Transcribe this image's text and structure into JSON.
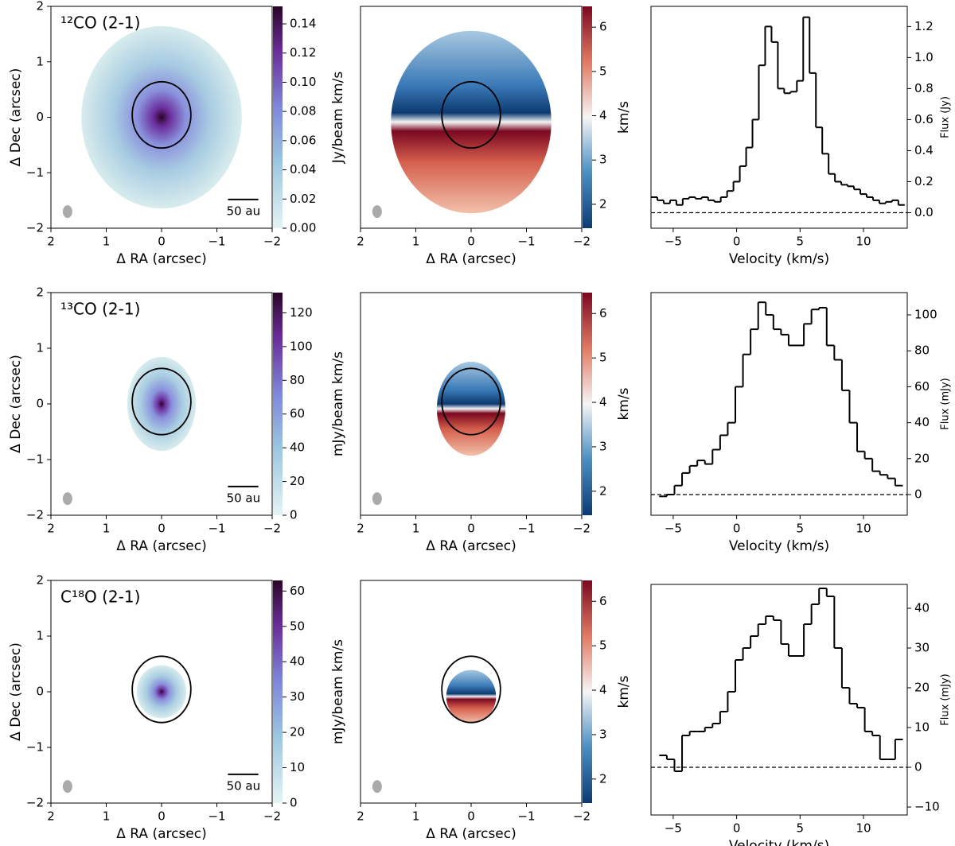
{
  "chart_data": [
    {
      "type": "image",
      "label": "¹²CO (2-1)",
      "scalebar_label": "50 au",
      "xlabel": "Δ RA (arcsec)",
      "ylabel": "Δ Dec (arcsec)",
      "xlim": [
        2,
        -2
      ],
      "ylim": [
        -2,
        2
      ],
      "xticks": [
        2,
        1,
        0,
        {
          "value": -1,
          "label": "−1"
        },
        {
          "value": -2,
          "label": "−2"
        }
      ],
      "yticks": [
        {
          "value": -2,
          "label": "−2"
        },
        {
          "value": -1,
          "label": "−1"
        },
        0,
        1,
        2
      ],
      "cmap": "moment0",
      "clim": [
        0,
        0.152
      ],
      "clabel": "Jy/beam km/s",
      "cticks": [
        {
          "value": 0,
          "label": "0.00"
        },
        {
          "value": 0.02,
          "label": "0.02"
        },
        {
          "value": 0.04,
          "label": "0.04"
        },
        {
          "value": 0.06,
          "label": "0.06"
        },
        {
          "value": 0.08,
          "label": "0.08"
        },
        {
          "value": 0.1,
          "label": "0.10"
        },
        {
          "value": 0.12,
          "label": "0.12"
        },
        {
          "value": 0.14,
          "label": "0.14"
        }
      ]
    },
    {
      "type": "image",
      "xlabel": "Δ RA (arcsec)",
      "xlim": [
        2,
        -2
      ],
      "ylim": [
        -2,
        2
      ],
      "xticks": [
        2,
        1,
        0,
        {
          "value": -1,
          "label": "−1"
        },
        {
          "value": -2,
          "label": "−2"
        }
      ],
      "cmap": "moment1",
      "clim": [
        1.46,
        6.47
      ],
      "clabel": "km/s",
      "cticks": [
        2,
        3,
        4,
        5,
        6
      ]
    },
    {
      "type": "line",
      "xlabel": "Velocity (km/s)",
      "ylabel": "Flux (Jy)",
      "color": "#000000",
      "hline": 0,
      "xlim": [
        -6.75,
        13.45
      ],
      "ylim": [
        -0.1,
        1.33
      ],
      "xticks": [
        {
          "value": -5,
          "label": "−5"
        },
        0,
        5,
        10
      ],
      "yticks": [
        {
          "value": 0,
          "label": "0.0"
        },
        {
          "value": 0.2,
          "label": "0.2"
        },
        {
          "value": 0.4,
          "label": "0.4"
        },
        {
          "value": 0.6,
          "label": "0.6"
        },
        {
          "value": 0.8,
          "label": "0.8"
        },
        {
          "value": 1,
          "label": "1.0"
        },
        {
          "value": 1.2,
          "label": "1.2"
        }
      ],
      "x": [
        -6.5,
        -6,
        -5.5,
        -5,
        -4.5,
        -4,
        -3.5,
        -3,
        -2.5,
        -2,
        -1.5,
        -1,
        -0.5,
        0,
        0.5,
        1,
        1.5,
        2,
        2.5,
        3,
        3.5,
        4,
        4.5,
        5,
        5.5,
        6,
        6.5,
        7,
        7.5,
        8,
        8.5,
        9,
        9.5,
        10,
        10.5,
        11,
        11.5,
        12,
        12.5,
        13
      ],
      "values": [
        0.1,
        0.08,
        0.06,
        0.08,
        0.05,
        0.09,
        0.1,
        0.09,
        0.1,
        0.08,
        0.07,
        0.1,
        0.14,
        0.2,
        0.3,
        0.42,
        0.6,
        0.95,
        1.2,
        1.1,
        0.8,
        0.77,
        0.78,
        0.85,
        1.26,
        0.9,
        0.55,
        0.38,
        0.25,
        0.2,
        0.18,
        0.17,
        0.15,
        0.12,
        0.1,
        0.08,
        0.06,
        0.07,
        0.08,
        0.05
      ]
    },
    {
      "type": "image",
      "label": "¹³CO (2-1)",
      "scalebar_label": "50 au",
      "xlabel": "Δ RA (arcsec)",
      "ylabel": "Δ Dec (arcsec)",
      "xlim": [
        2,
        -2
      ],
      "ylim": [
        -2,
        2
      ],
      "xticks": [
        2,
        1,
        0,
        {
          "value": -1,
          "label": "−1"
        },
        {
          "value": -2,
          "label": "−2"
        }
      ],
      "yticks": [
        {
          "value": -2,
          "label": "−2"
        },
        {
          "value": -1,
          "label": "−1"
        },
        0,
        1,
        2
      ],
      "cmap": "moment0",
      "clim": [
        0,
        132
      ],
      "clabel": "mJy/beam km/s",
      "cticks": [
        0,
        20,
        40,
        60,
        80,
        100,
        120
      ]
    },
    {
      "type": "image",
      "xlabel": "Δ RA (arcsec)",
      "xlim": [
        2,
        -2
      ],
      "ylim": [
        -2,
        2
      ],
      "xticks": [
        2,
        1,
        0,
        {
          "value": -1,
          "label": "−1"
        },
        {
          "value": -2,
          "label": "−2"
        }
      ],
      "cmap": "moment1",
      "clim": [
        1.46,
        6.47
      ],
      "clabel": "km/s",
      "cticks": [
        2,
        3,
        4,
        5,
        6
      ]
    },
    {
      "type": "line",
      "xlabel": "Velocity (km/s)",
      "ylabel": "Flux (mJy)",
      "color": "#000000",
      "hline": 0,
      "xlim": [
        -6.75,
        13.45
      ],
      "ylim": [
        -11.5,
        112.4
      ],
      "xticks": [
        {
          "value": -5,
          "label": "−5"
        },
        0,
        5,
        10
      ],
      "yticks": [
        0,
        20,
        40,
        60,
        80,
        100
      ],
      "x": [
        -5.8,
        -5.2,
        -4.6,
        -4,
        -3.4,
        -2.8,
        -2.2,
        -1.6,
        -1,
        -0.4,
        0.2,
        0.8,
        1.4,
        2,
        2.6,
        3.2,
        3.8,
        4.4,
        5,
        5.6,
        6.2,
        6.8,
        7.4,
        8,
        8.6,
        9.2,
        9.8,
        10.4,
        11,
        11.6,
        12.2,
        12.8
      ],
      "values": [
        -1,
        0,
        5,
        12,
        16,
        19,
        17,
        25,
        33,
        40,
        60,
        78,
        92,
        107,
        100,
        92,
        89,
        83,
        83,
        95,
        103,
        104,
        83,
        75,
        58,
        40,
        24,
        20,
        13,
        11,
        9,
        5
      ]
    },
    {
      "type": "image",
      "label": "C¹⁸O (2-1)",
      "scalebar_label": "50 au",
      "xlabel": "Δ RA (arcsec)",
      "ylabel": "Δ Dec (arcsec)",
      "xlim": [
        2,
        -2
      ],
      "ylim": [
        -2,
        2
      ],
      "xticks": [
        2,
        1,
        0,
        {
          "value": -1,
          "label": "−1"
        },
        {
          "value": -2,
          "label": "−2"
        }
      ],
      "yticks": [
        {
          "value": -2,
          "label": "−2"
        },
        {
          "value": -1,
          "label": "−1"
        },
        0,
        1,
        2
      ],
      "cmap": "moment0",
      "clim": [
        0,
        63
      ],
      "clabel": "mJy/beam km/s",
      "cticks": [
        0,
        10,
        20,
        30,
        40,
        50,
        60
      ]
    },
    {
      "type": "image",
      "xlabel": "Δ RA (arcsec)",
      "xlim": [
        2,
        -2
      ],
      "ylim": [
        -2,
        2
      ],
      "xticks": [
        2,
        1,
        0,
        {
          "value": -1,
          "label": "−1"
        },
        {
          "value": -2,
          "label": "−2"
        }
      ],
      "cmap": "moment1",
      "clim": [
        1.46,
        6.47
      ],
      "clabel": "km/s",
      "cticks": [
        2,
        3,
        4,
        5,
        6
      ]
    },
    {
      "type": "line",
      "xlabel": "Velocity (km/s)",
      "ylabel": "Flux (mJy)",
      "color": "#000000",
      "hline": 0,
      "xlim": [
        -6.75,
        13.45
      ],
      "ylim": [
        -12,
        46
      ],
      "xticks": [
        {
          "value": -5,
          "label": "−5"
        },
        0,
        5,
        10
      ],
      "yticks": [
        {
          "value": -10,
          "label": "−10"
        },
        0,
        10,
        20,
        30,
        40
      ],
      "x": [
        -5.8,
        -5.2,
        -4.6,
        -4,
        -3.4,
        -2.8,
        -2.2,
        -1.6,
        -1,
        -0.4,
        0.2,
        0.8,
        1.4,
        2,
        2.6,
        3.2,
        3.8,
        4.4,
        5,
        5.6,
        6.2,
        6.8,
        7.4,
        8,
        8.6,
        9.2,
        9.8,
        10.4,
        11,
        11.6,
        12.2,
        12.8
      ],
      "values": [
        3,
        2,
        -1,
        8,
        9,
        9,
        10,
        11,
        14,
        19,
        27,
        30,
        33,
        36,
        38,
        37,
        31,
        28,
        28,
        36,
        41,
        45,
        43,
        30,
        20,
        16,
        15,
        9,
        8,
        2,
        2,
        7
      ]
    }
  ]
}
